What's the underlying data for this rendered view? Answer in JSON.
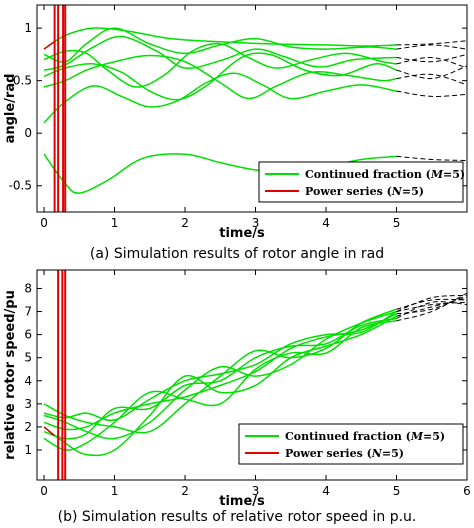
{
  "chart_data": [
    {
      "type": "line",
      "caption": "(a) Simulation results of rotor angle in rad",
      "xlabel": "time/s",
      "ylabel": "angle/rad",
      "xlim": [
        -0.1,
        6.0
      ],
      "ylim": [
        -0.75,
        1.22
      ],
      "xticks": [
        0,
        1,
        2,
        3,
        4,
        5
      ],
      "yticks": [
        -0.5,
        0,
        0.5,
        1
      ],
      "ytick_labels": [
        "-0.5",
        "0",
        "0.5",
        "1"
      ],
      "legend": {
        "position": "bottom-right",
        "entries": [
          {
            "label": "Continued fraction (M=5)",
            "pre": "Continued fraction (",
            "var": "M",
            "post": "=5)",
            "color": "#00e000"
          },
          {
            "label": "Power series (N=5)",
            "pre": "Power series (",
            "var": "N",
            "post": "=5)",
            "color": "#e00000"
          }
        ]
      },
      "colors": {
        "continued": "#00e000",
        "power": "#e00000",
        "extrapolated": "#000000",
        "zero_line": "#00b000"
      },
      "valid_until": 5.0,
      "series": [
        {
          "values": [
            [
              0,
              0.8
            ],
            [
              0.3,
              0.93
            ],
            [
              0.7,
              1.0
            ],
            [
              1.2,
              0.97
            ],
            [
              1.8,
              0.9
            ],
            [
              2.5,
              0.87
            ],
            [
              3.2,
              0.85
            ],
            [
              4.0,
              0.84
            ],
            [
              4.6,
              0.83
            ],
            [
              5.0,
              0.84
            ],
            [
              5.5,
              0.85
            ],
            [
              6.0,
              0.88
            ]
          ]
        },
        {
          "values": [
            [
              0,
              0.75
            ],
            [
              0.3,
              0.68
            ],
            [
              0.6,
              0.85
            ],
            [
              1.0,
              1.0
            ],
            [
              1.5,
              0.85
            ],
            [
              2.0,
              0.76
            ],
            [
              2.5,
              0.84
            ],
            [
              3.0,
              0.9
            ],
            [
              3.5,
              0.82
            ],
            [
              4.0,
              0.8
            ],
            [
              4.6,
              0.82
            ],
            [
              5.0,
              0.8
            ],
            [
              5.5,
              0.84
            ],
            [
              6.0,
              0.8
            ]
          ]
        },
        {
          "values": [
            [
              0,
              0.6
            ],
            [
              0.3,
              0.65
            ],
            [
              0.7,
              0.82
            ],
            [
              1.1,
              0.92
            ],
            [
              1.6,
              0.78
            ],
            [
              2.0,
              0.62
            ],
            [
              2.5,
              0.69
            ],
            [
              3.0,
              0.8
            ],
            [
              3.4,
              0.73
            ],
            [
              3.9,
              0.63
            ],
            [
              4.4,
              0.7
            ],
            [
              5.0,
              0.72
            ],
            [
              5.5,
              0.68
            ],
            [
              6.0,
              0.75
            ]
          ]
        },
        {
          "values": [
            [
              0,
              0.54
            ],
            [
              0.3,
              0.62
            ],
            [
              0.7,
              0.66
            ],
            [
              1.1,
              0.58
            ],
            [
              1.5,
              0.4
            ],
            [
              1.9,
              0.32
            ],
            [
              2.3,
              0.45
            ],
            [
              2.8,
              0.72
            ],
            [
              3.2,
              0.75
            ],
            [
              3.7,
              0.6
            ],
            [
              4.2,
              0.55
            ],
            [
              4.7,
              0.66
            ],
            [
              5.0,
              0.6
            ],
            [
              5.5,
              0.52
            ],
            [
              6.0,
              0.64
            ]
          ]
        },
        {
          "values": [
            [
              0,
              0.7
            ],
            [
              0.3,
              0.78
            ],
            [
              0.6,
              0.76
            ],
            [
              0.9,
              0.6
            ],
            [
              1.3,
              0.44
            ],
            [
              1.7,
              0.55
            ],
            [
              2.1,
              0.78
            ],
            [
              2.5,
              0.85
            ],
            [
              2.9,
              0.72
            ],
            [
              3.3,
              0.62
            ],
            [
              3.8,
              0.7
            ],
            [
              4.3,
              0.76
            ],
            [
              4.8,
              0.68
            ],
            [
              5.0,
              0.66
            ],
            [
              5.5,
              0.72
            ],
            [
              6.0,
              0.62
            ]
          ]
        },
        {
          "values": [
            [
              0,
              0.44
            ],
            [
              0.3,
              0.5
            ],
            [
              0.6,
              0.6
            ],
            [
              1.0,
              0.68
            ],
            [
              1.5,
              0.74
            ],
            [
              2.0,
              0.68
            ],
            [
              2.5,
              0.48
            ],
            [
              2.9,
              0.33
            ],
            [
              3.3,
              0.45
            ],
            [
              3.8,
              0.58
            ],
            [
              4.3,
              0.55
            ],
            [
              4.8,
              0.5
            ],
            [
              5.0,
              0.52
            ],
            [
              5.5,
              0.56
            ],
            [
              6.0,
              0.46
            ]
          ]
        },
        {
          "values": [
            [
              0,
              0.1
            ],
            [
              0.3,
              0.3
            ],
            [
              0.7,
              0.45
            ],
            [
              1.1,
              0.35
            ],
            [
              1.5,
              0.25
            ],
            [
              1.9,
              0.31
            ],
            [
              2.3,
              0.48
            ],
            [
              2.7,
              0.57
            ],
            [
              3.1,
              0.46
            ],
            [
              3.5,
              0.33
            ],
            [
              4.0,
              0.4
            ],
            [
              4.5,
              0.46
            ],
            [
              5.0,
              0.4
            ],
            [
              5.5,
              0.35
            ],
            [
              6.0,
              0.37
            ]
          ]
        },
        {
          "values": [
            [
              0,
              0.0
            ],
            [
              6.0,
              0.0
            ]
          ]
        },
        {
          "values": [
            [
              0,
              -0.2
            ],
            [
              0.3,
              -0.48
            ],
            [
              0.5,
              -0.57
            ],
            [
              0.9,
              -0.45
            ],
            [
              1.4,
              -0.24
            ],
            [
              2.0,
              -0.2
            ],
            [
              2.5,
              -0.28
            ],
            [
              3.0,
              -0.35
            ],
            [
              3.5,
              -0.37
            ],
            [
              4.0,
              -0.32
            ],
            [
              4.5,
              -0.25
            ],
            [
              5.0,
              -0.22
            ],
            [
              5.5,
              -0.25
            ],
            [
              6.0,
              -0.26
            ]
          ]
        }
      ],
      "power_series_vlines": [
        0.15,
        0.2,
        0.27,
        0.3
      ]
    },
    {
      "type": "line",
      "caption": "(b) Simulation results of relative rotor speed in p.u.",
      "xlabel": "time/s",
      "ylabel": "relative rotor speed/pu",
      "xlim": [
        -0.1,
        6.0
      ],
      "ylim": [
        -0.3,
        8.8
      ],
      "xticks": [
        0,
        1,
        2,
        3,
        4,
        5,
        6
      ],
      "yticks": [
        1,
        2,
        3,
        4,
        5,
        6,
        7,
        8
      ],
      "ytick_labels": [
        "1",
        "2",
        "3",
        "4",
        "5",
        "6",
        "7",
        "8"
      ],
      "legend": {
        "position": "bottom-right",
        "entries": [
          {
            "label": "Continued fraction (M=5)",
            "pre": "Continued fraction (",
            "var": "M",
            "post": "=5)",
            "color": "#00e000"
          },
          {
            "label": "Power series (N=5)",
            "pre": "Power series (",
            "var": "N",
            "post": "=5)",
            "color": "#e00000"
          }
        ]
      },
      "colors": {
        "continued": "#00e000",
        "power": "#e00000",
        "extrapolated": "#000000"
      },
      "valid_until": 5.0,
      "series": [
        {
          "values": [
            [
              0,
              2.0
            ],
            [
              0.3,
              1.3
            ],
            [
              0.6,
              0.8
            ],
            [
              1.0,
              1.0
            ],
            [
              1.5,
              2.5
            ],
            [
              2.0,
              4.2
            ],
            [
              2.5,
              3.5
            ],
            [
              3.0,
              3.8
            ],
            [
              3.5,
              5.0
            ],
            [
              4.0,
              5.5
            ],
            [
              4.5,
              6.0
            ],
            [
              5.0,
              6.8
            ],
            [
              5.5,
              7.2
            ],
            [
              6.0,
              7.6
            ]
          ]
        },
        {
          "values": [
            [
              0,
              1.5
            ],
            [
              0.3,
              1.0
            ],
            [
              0.6,
              1.3
            ],
            [
              1.0,
              2.2
            ],
            [
              1.5,
              3.5
            ],
            [
              2.0,
              3.2
            ],
            [
              2.5,
              3.0
            ],
            [
              3.0,
              4.5
            ],
            [
              3.5,
              5.2
            ],
            [
              4.0,
              5.2
            ],
            [
              4.5,
              6.3
            ],
            [
              5.0,
              6.6
            ],
            [
              5.5,
              7.0
            ],
            [
              6.0,
              7.8
            ]
          ]
        },
        {
          "values": [
            [
              0,
              2.5
            ],
            [
              0.3,
              2.2
            ],
            [
              0.6,
              1.8
            ],
            [
              1.0,
              1.5
            ],
            [
              1.5,
              2.2
            ],
            [
              2.0,
              3.6
            ],
            [
              2.5,
              4.6
            ],
            [
              3.0,
              4.2
            ],
            [
              3.5,
              4.7
            ],
            [
              4.0,
              5.8
            ],
            [
              4.5,
              6.5
            ],
            [
              5.0,
              7.0
            ],
            [
              5.5,
              7.3
            ],
            [
              6.0,
              7.4
            ]
          ]
        },
        {
          "values": [
            [
              0,
              3.0
            ],
            [
              0.3,
              2.5
            ],
            [
              0.6,
              2.2
            ],
            [
              1.0,
              2.0
            ],
            [
              1.5,
              1.8
            ],
            [
              2.0,
              3.0
            ],
            [
              2.5,
              4.2
            ],
            [
              3.0,
              5.3
            ],
            [
              3.5,
              5.0
            ],
            [
              4.0,
              5.4
            ],
            [
              4.5,
              6.5
            ],
            [
              5.0,
              7.1
            ],
            [
              5.5,
              7.5
            ],
            [
              6.0,
              7.5
            ]
          ]
        },
        {
          "values": [
            [
              0,
              2.2
            ],
            [
              0.3,
              1.9
            ],
            [
              0.6,
              2.0
            ],
            [
              1.0,
              2.6
            ],
            [
              1.5,
              3.0
            ],
            [
              2.0,
              3.3
            ],
            [
              2.5,
              3.8
            ],
            [
              3.0,
              4.4
            ],
            [
              3.5,
              5.4
            ],
            [
              4.0,
              5.9
            ],
            [
              4.5,
              6.2
            ],
            [
              5.0,
              6.9
            ],
            [
              5.5,
              7.1
            ],
            [
              6.0,
              7.7
            ]
          ]
        },
        {
          "values": [
            [
              0,
              1.8
            ],
            [
              0.3,
              1.5
            ],
            [
              0.6,
              1.7
            ],
            [
              1.0,
              2.8
            ],
            [
              1.5,
              2.8
            ],
            [
              2.0,
              3.8
            ],
            [
              2.5,
              4.0
            ],
            [
              3.0,
              5.0
            ],
            [
              3.5,
              5.5
            ],
            [
              4.0,
              5.6
            ],
            [
              4.5,
              6.4
            ],
            [
              5.0,
              6.7
            ],
            [
              5.5,
              7.4
            ],
            [
              6.0,
              7.3
            ]
          ]
        },
        {
          "values": [
            [
              0,
              2.6
            ],
            [
              0.3,
              2.4
            ],
            [
              0.6,
              2.6
            ],
            [
              1.0,
              2.3
            ],
            [
              1.5,
              3.2
            ],
            [
              2.0,
              4.0
            ],
            [
              2.5,
              4.3
            ],
            [
              3.0,
              4.7
            ],
            [
              3.5,
              5.6
            ],
            [
              4.0,
              6.0
            ],
            [
              4.5,
              6.1
            ],
            [
              5.0,
              7.0
            ],
            [
              5.5,
              7.6
            ],
            [
              6.0,
              7.7
            ]
          ]
        }
      ],
      "power_series_vlines": [
        0.2,
        0.26,
        0.3
      ]
    }
  ]
}
